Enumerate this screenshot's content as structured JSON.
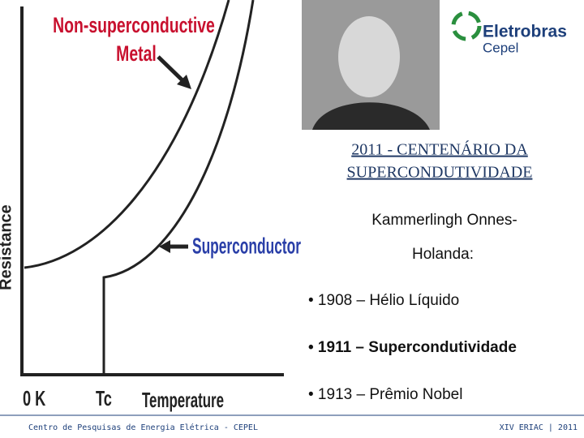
{
  "diagram": {
    "metal_label_line1": "Non-superconductive",
    "metal_label_line2": "Metal",
    "superconductor_label": "Superconductor",
    "y_axis_label": "Resistance",
    "x_label_zero": "0 K",
    "x_label_tc": "Tc",
    "x_axis_label": "Temperature"
  },
  "logo": {
    "name": "Eletrobras",
    "sub": "Cepel"
  },
  "title_line1": "2011 - CENTENÁRIO DA",
  "title_line2": "SUPERCONDUTIVIDADE",
  "person_line1": "Kammerlingh Onnes-",
  "person_line2": "Holanda:",
  "bullets": [
    "• 1908 – Hélio Líquido",
    "• 1911 –  Supercondutividade",
    "• 1913 – Prêmio Nobel"
  ],
  "footer": {
    "left": "Centro de Pesquisas de Energia Elétrica - CEPEL",
    "right": "XIV ERIAC | 2011"
  }
}
